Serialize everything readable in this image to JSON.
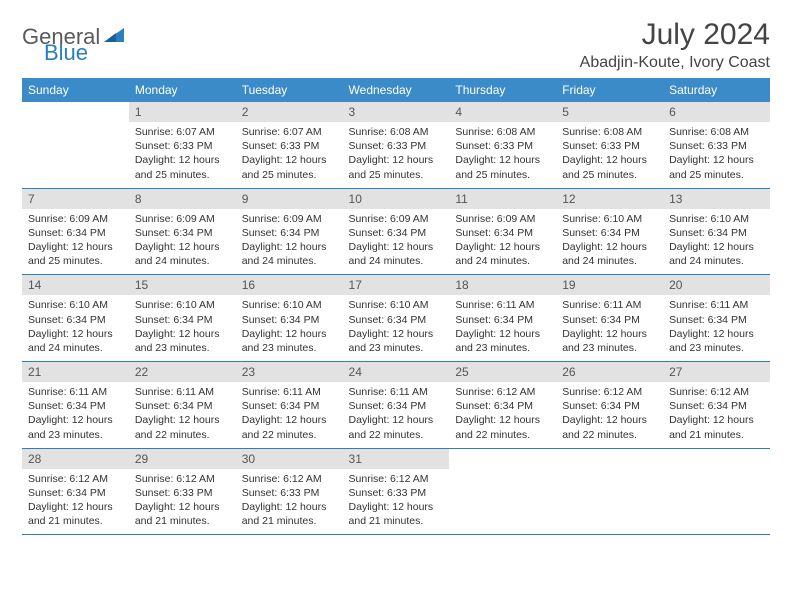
{
  "brand": {
    "part1": "General",
    "part2": "Blue"
  },
  "title": "July 2024",
  "location": "Abadjin-Koute, Ivory Coast",
  "colors": {
    "header_bg": "#3b8bc8",
    "border": "#2a7fbf",
    "daynum_bg": "#e2e2e2",
    "text": "#333333",
    "brand_gray": "#5a5a5a",
    "brand_blue": "#2a7fbf"
  },
  "weekdays": [
    "Sunday",
    "Monday",
    "Tuesday",
    "Wednesday",
    "Thursday",
    "Friday",
    "Saturday"
  ],
  "weeks": [
    [
      {
        "n": "",
        "sr": "",
        "ss": "",
        "dl": ""
      },
      {
        "n": "1",
        "sr": "Sunrise: 6:07 AM",
        "ss": "Sunset: 6:33 PM",
        "dl": "Daylight: 12 hours and 25 minutes."
      },
      {
        "n": "2",
        "sr": "Sunrise: 6:07 AM",
        "ss": "Sunset: 6:33 PM",
        "dl": "Daylight: 12 hours and 25 minutes."
      },
      {
        "n": "3",
        "sr": "Sunrise: 6:08 AM",
        "ss": "Sunset: 6:33 PM",
        "dl": "Daylight: 12 hours and 25 minutes."
      },
      {
        "n": "4",
        "sr": "Sunrise: 6:08 AM",
        "ss": "Sunset: 6:33 PM",
        "dl": "Daylight: 12 hours and 25 minutes."
      },
      {
        "n": "5",
        "sr": "Sunrise: 6:08 AM",
        "ss": "Sunset: 6:33 PM",
        "dl": "Daylight: 12 hours and 25 minutes."
      },
      {
        "n": "6",
        "sr": "Sunrise: 6:08 AM",
        "ss": "Sunset: 6:33 PM",
        "dl": "Daylight: 12 hours and 25 minutes."
      }
    ],
    [
      {
        "n": "7",
        "sr": "Sunrise: 6:09 AM",
        "ss": "Sunset: 6:34 PM",
        "dl": "Daylight: 12 hours and 25 minutes."
      },
      {
        "n": "8",
        "sr": "Sunrise: 6:09 AM",
        "ss": "Sunset: 6:34 PM",
        "dl": "Daylight: 12 hours and 24 minutes."
      },
      {
        "n": "9",
        "sr": "Sunrise: 6:09 AM",
        "ss": "Sunset: 6:34 PM",
        "dl": "Daylight: 12 hours and 24 minutes."
      },
      {
        "n": "10",
        "sr": "Sunrise: 6:09 AM",
        "ss": "Sunset: 6:34 PM",
        "dl": "Daylight: 12 hours and 24 minutes."
      },
      {
        "n": "11",
        "sr": "Sunrise: 6:09 AM",
        "ss": "Sunset: 6:34 PM",
        "dl": "Daylight: 12 hours and 24 minutes."
      },
      {
        "n": "12",
        "sr": "Sunrise: 6:10 AM",
        "ss": "Sunset: 6:34 PM",
        "dl": "Daylight: 12 hours and 24 minutes."
      },
      {
        "n": "13",
        "sr": "Sunrise: 6:10 AM",
        "ss": "Sunset: 6:34 PM",
        "dl": "Daylight: 12 hours and 24 minutes."
      }
    ],
    [
      {
        "n": "14",
        "sr": "Sunrise: 6:10 AM",
        "ss": "Sunset: 6:34 PM",
        "dl": "Daylight: 12 hours and 24 minutes."
      },
      {
        "n": "15",
        "sr": "Sunrise: 6:10 AM",
        "ss": "Sunset: 6:34 PM",
        "dl": "Daylight: 12 hours and 23 minutes."
      },
      {
        "n": "16",
        "sr": "Sunrise: 6:10 AM",
        "ss": "Sunset: 6:34 PM",
        "dl": "Daylight: 12 hours and 23 minutes."
      },
      {
        "n": "17",
        "sr": "Sunrise: 6:10 AM",
        "ss": "Sunset: 6:34 PM",
        "dl": "Daylight: 12 hours and 23 minutes."
      },
      {
        "n": "18",
        "sr": "Sunrise: 6:11 AM",
        "ss": "Sunset: 6:34 PM",
        "dl": "Daylight: 12 hours and 23 minutes."
      },
      {
        "n": "19",
        "sr": "Sunrise: 6:11 AM",
        "ss": "Sunset: 6:34 PM",
        "dl": "Daylight: 12 hours and 23 minutes."
      },
      {
        "n": "20",
        "sr": "Sunrise: 6:11 AM",
        "ss": "Sunset: 6:34 PM",
        "dl": "Daylight: 12 hours and 23 minutes."
      }
    ],
    [
      {
        "n": "21",
        "sr": "Sunrise: 6:11 AM",
        "ss": "Sunset: 6:34 PM",
        "dl": "Daylight: 12 hours and 23 minutes."
      },
      {
        "n": "22",
        "sr": "Sunrise: 6:11 AM",
        "ss": "Sunset: 6:34 PM",
        "dl": "Daylight: 12 hours and 22 minutes."
      },
      {
        "n": "23",
        "sr": "Sunrise: 6:11 AM",
        "ss": "Sunset: 6:34 PM",
        "dl": "Daylight: 12 hours and 22 minutes."
      },
      {
        "n": "24",
        "sr": "Sunrise: 6:11 AM",
        "ss": "Sunset: 6:34 PM",
        "dl": "Daylight: 12 hours and 22 minutes."
      },
      {
        "n": "25",
        "sr": "Sunrise: 6:12 AM",
        "ss": "Sunset: 6:34 PM",
        "dl": "Daylight: 12 hours and 22 minutes."
      },
      {
        "n": "26",
        "sr": "Sunrise: 6:12 AM",
        "ss": "Sunset: 6:34 PM",
        "dl": "Daylight: 12 hours and 22 minutes."
      },
      {
        "n": "27",
        "sr": "Sunrise: 6:12 AM",
        "ss": "Sunset: 6:34 PM",
        "dl": "Daylight: 12 hours and 21 minutes."
      }
    ],
    [
      {
        "n": "28",
        "sr": "Sunrise: 6:12 AM",
        "ss": "Sunset: 6:34 PM",
        "dl": "Daylight: 12 hours and 21 minutes."
      },
      {
        "n": "29",
        "sr": "Sunrise: 6:12 AM",
        "ss": "Sunset: 6:33 PM",
        "dl": "Daylight: 12 hours and 21 minutes."
      },
      {
        "n": "30",
        "sr": "Sunrise: 6:12 AM",
        "ss": "Sunset: 6:33 PM",
        "dl": "Daylight: 12 hours and 21 minutes."
      },
      {
        "n": "31",
        "sr": "Sunrise: 6:12 AM",
        "ss": "Sunset: 6:33 PM",
        "dl": "Daylight: 12 hours and 21 minutes."
      },
      {
        "n": "",
        "sr": "",
        "ss": "",
        "dl": ""
      },
      {
        "n": "",
        "sr": "",
        "ss": "",
        "dl": ""
      },
      {
        "n": "",
        "sr": "",
        "ss": "",
        "dl": ""
      }
    ]
  ]
}
